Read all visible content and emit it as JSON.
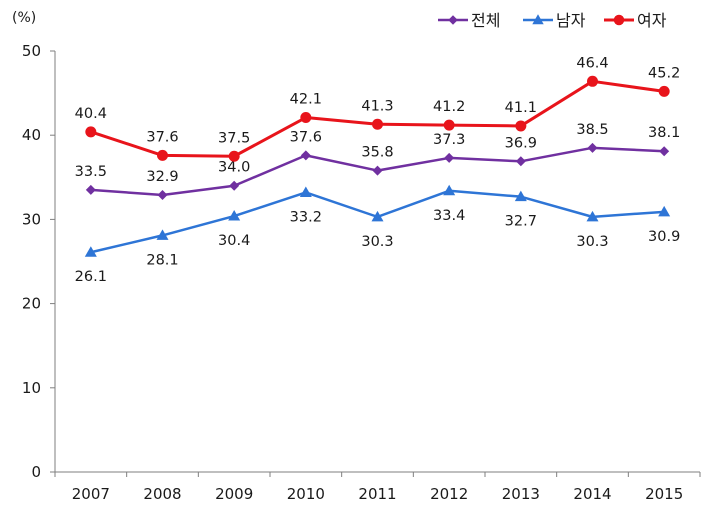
{
  "chart_data": {
    "type": "line",
    "title": "",
    "xlabel": "",
    "ylabel": "(%)",
    "ylim": [
      0,
      50
    ],
    "yticks": [
      0,
      10,
      20,
      30,
      40,
      50
    ],
    "grid": false,
    "legend_position": "top-right",
    "categories": [
      "2007",
      "2008",
      "2009",
      "2010",
      "2011",
      "2012",
      "2013",
      "2014",
      "2015"
    ],
    "series": [
      {
        "name": "전체",
        "color": "#7030a0",
        "marker": "diamond",
        "values": [
          33.5,
          32.9,
          34.0,
          37.6,
          35.8,
          37.3,
          36.9,
          38.5,
          38.1
        ],
        "labels": [
          "33.5",
          "32.9",
          "34.0",
          "37.6",
          "35.8",
          "37.3",
          "36.9",
          "38.5",
          "38.1"
        ],
        "label_side": [
          "above",
          "above",
          "above",
          "above",
          "above",
          "above",
          "above",
          "above",
          "above"
        ]
      },
      {
        "name": "남자",
        "color": "#2e75d6",
        "marker": "triangle",
        "values": [
          26.1,
          28.1,
          30.4,
          33.2,
          30.3,
          33.4,
          32.7,
          30.3,
          30.9
        ],
        "labels": [
          "26.1",
          "28.1",
          "30.4",
          "33.2",
          "30.3",
          "33.4",
          "32.7",
          "30.3",
          "30.9"
        ],
        "label_side": [
          "below",
          "below",
          "below",
          "below",
          "below",
          "below",
          "below",
          "below",
          "below"
        ]
      },
      {
        "name": "여자",
        "color": "#e8141b",
        "marker": "circle",
        "values": [
          40.4,
          37.6,
          37.5,
          42.1,
          41.3,
          41.2,
          41.1,
          46.4,
          45.2
        ],
        "labels": [
          "40.4",
          "37.6",
          "37.5",
          "42.1",
          "41.3",
          "41.2",
          "41.1",
          "46.4",
          "45.2"
        ],
        "label_side": [
          "above",
          "above",
          "above",
          "above",
          "above",
          "above",
          "above",
          "above",
          "above"
        ]
      }
    ]
  }
}
